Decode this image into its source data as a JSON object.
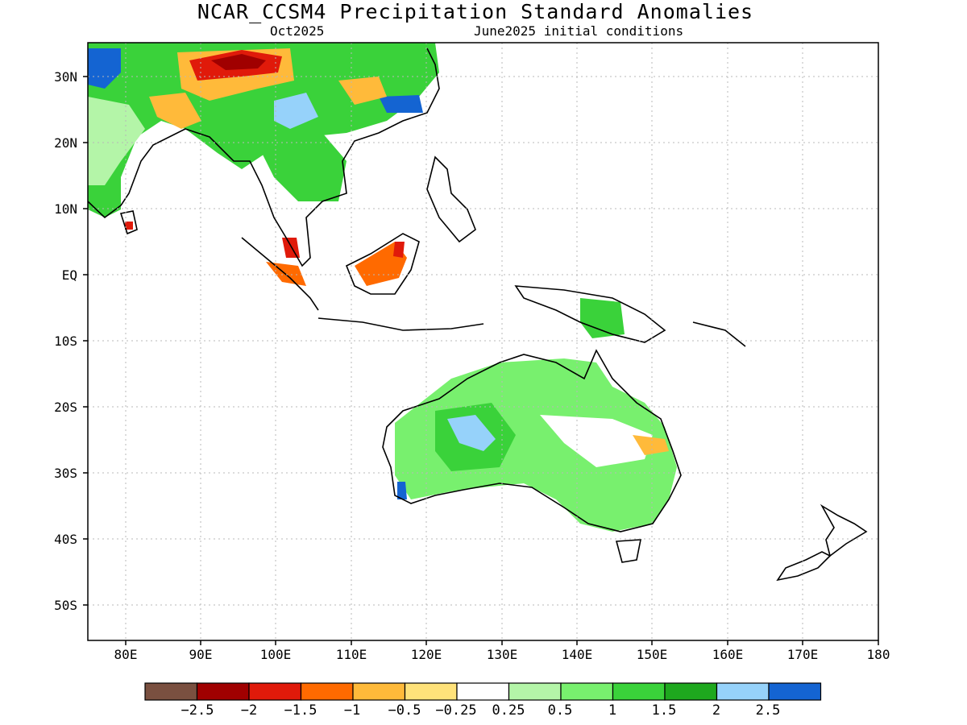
{
  "title": "NCAR_CCSM4 Precipitation Standard Anomalies",
  "subtitle_left": "Oct2025",
  "subtitle_right": "June2025 initial conditions",
  "map": {
    "lon_range": [
      75,
      180
    ],
    "lat_range": [
      -55,
      35
    ],
    "y_ticks": [
      "30N",
      "20N",
      "10N",
      "EQ",
      "10S",
      "20S",
      "30S",
      "40S",
      "50S"
    ],
    "x_ticks": [
      "80E",
      "90E",
      "100E",
      "110E",
      "120E",
      "130E",
      "140E",
      "150E",
      "160E",
      "170E",
      "180"
    ],
    "grid": "dotted"
  },
  "colorbar": {
    "colors": [
      "#7a5040",
      "#a00000",
      "#e01a0a",
      "#ff6a00",
      "#ffba3a",
      "#ffe27a",
      "#ffffff",
      "#b4f5a8",
      "#78f06e",
      "#3ad23a",
      "#1ea81e",
      "#96d2fa",
      "#1464d2"
    ],
    "labels": [
      "-2.5",
      "-2",
      "-1.5",
      "-1",
      "-0.5",
      "-0.25",
      "0.25",
      "0.5",
      "1",
      "1.5",
      "2",
      "2.5"
    ]
  }
}
